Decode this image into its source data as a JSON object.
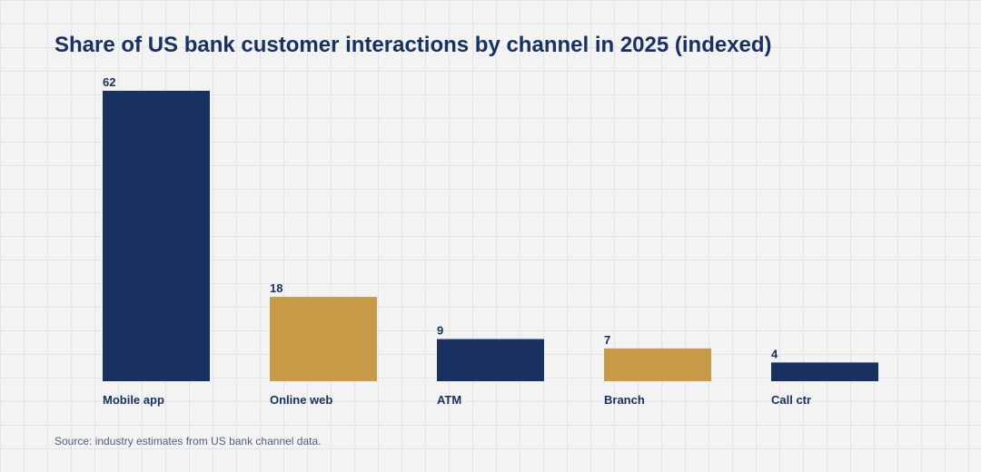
{
  "chart_data": {
    "type": "bar",
    "title": "Share of US bank customer interactions by channel in 2025 (indexed)",
    "categories": [
      "Mobile app",
      "Online web",
      "ATM",
      "Branch",
      "Call ctr"
    ],
    "values": [
      62,
      18,
      9,
      7,
      4
    ],
    "value_labels": [
      "62",
      "18",
      "9",
      "7",
      "4"
    ],
    "xlabel": "",
    "ylabel": "",
    "ylim": [
      0,
      62
    ],
    "grid": true,
    "legend": "none",
    "colors": [
      "#183160",
      "#c89a48",
      "#183160",
      "#c89a48",
      "#183160"
    ]
  },
  "source_note": "Source: industry estimates from US bank channel data.",
  "colors": {
    "background": "#f3f3f3",
    "grid": "#e4e4e4",
    "text_dark": "#183160",
    "text_muted": "#4f5f80"
  }
}
